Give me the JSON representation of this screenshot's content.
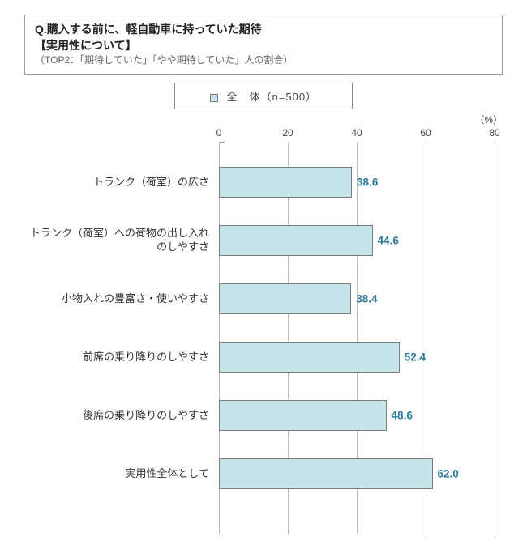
{
  "title": {
    "line1": "Q.購入する前に、軽自動車に持っていた期待",
    "line2": "【実用性について】",
    "line3": "（TOP2：「期待していた」「やや期待していた」人の割合）"
  },
  "legend": {
    "label": "全　体（n=500）"
  },
  "unit": "（%）",
  "chart": {
    "type": "bar",
    "xlim": [
      0,
      80
    ],
    "ticks": [
      0,
      20,
      40,
      60,
      80
    ],
    "bar_color": "#c6e5ea",
    "bar_border_color": "#7a7a7a",
    "grid_color": "#bbbbbb",
    "value_label_color": "#2b7a99",
    "categories": [
      "トランク（荷室）の広さ",
      "トランク（荷室）への荷物の出し入れのしやすさ",
      "小物入れの豊富さ・使いやすさ",
      "前席の乗り降りのしやすさ",
      "後席の乗り降りのしやすさ",
      "実用性全体として"
    ],
    "values": [
      38.6,
      44.6,
      38.4,
      52.4,
      48.6,
      62.0
    ],
    "value_labels": [
      "38.6",
      "44.6",
      "38.4",
      "52.4",
      "48.6",
      "62.0"
    ]
  }
}
